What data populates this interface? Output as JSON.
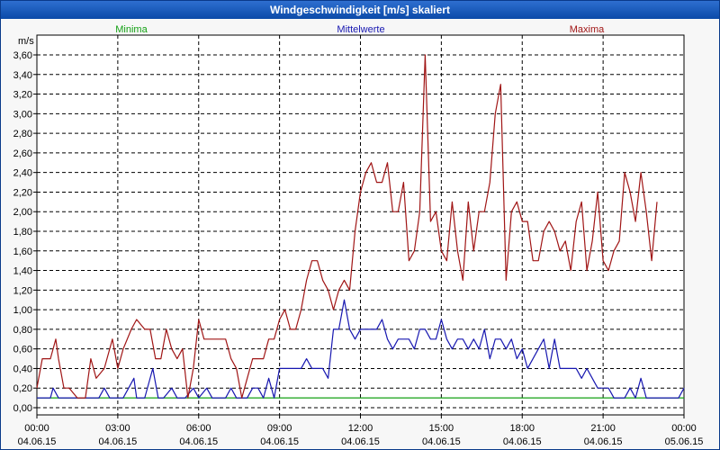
{
  "window": {
    "title": "Windgeschwindigkeit [m/s] skaliert"
  },
  "colors": {
    "minima": "#13a013",
    "mean": "#1717b0",
    "maxima": "#a01515",
    "grid": "#000000",
    "plot_bg": "#ffffff"
  },
  "chart_data": {
    "type": "line",
    "title": "Windgeschwindigkeit [m/s] skaliert",
    "ylabel": "m/s",
    "xlabel": "",
    "ylim": [
      0,
      3.7
    ],
    "xlim": [
      0,
      24
    ],
    "grid": true,
    "legend_placement": "top",
    "y_ticks": [
      0.0,
      0.2,
      0.4,
      0.6,
      0.8,
      1.0,
      1.2,
      1.4,
      1.6,
      1.8,
      2.0,
      2.2,
      2.4,
      2.6,
      2.8,
      3.0,
      3.2,
      3.4,
      3.6
    ],
    "y_tick_labels": [
      "0,00",
      "0,20",
      "0,40",
      "0,60",
      "0,80",
      "1,00",
      "1,20",
      "1,40",
      "1,60",
      "1,80",
      "2,00",
      "2,20",
      "2,40",
      "2,60",
      "2,80",
      "3,00",
      "3,20",
      "3,40",
      "3,60"
    ],
    "x_ticks": [
      {
        "hour": 0,
        "time": "00:00",
        "date": "04.06.15"
      },
      {
        "hour": 3,
        "time": "03:00",
        "date": "04.06.15"
      },
      {
        "hour": 6,
        "time": "06:00",
        "date": "04.06.15"
      },
      {
        "hour": 9,
        "time": "09:00",
        "date": "04.06.15"
      },
      {
        "hour": 12,
        "time": "12:00",
        "date": "04.06.15"
      },
      {
        "hour": 15,
        "time": "15:00",
        "date": "04.06.15"
      },
      {
        "hour": 18,
        "time": "18:00",
        "date": "04.06.15"
      },
      {
        "hour": 21,
        "time": "21:00",
        "date": "04.06.15"
      },
      {
        "hour": 24,
        "time": "00:00",
        "date": "05.06.15"
      }
    ],
    "series": [
      {
        "name": "Minima",
        "color_key": "minima",
        "points": [
          [
            0,
            0.1
          ],
          [
            24,
            0.1
          ]
        ]
      },
      {
        "name": "Mittelwerte",
        "color_key": "mean",
        "points": [
          [
            0,
            0.1
          ],
          [
            0.2,
            0.1
          ],
          [
            0.5,
            0.1
          ],
          [
            0.6,
            0.2
          ],
          [
            0.8,
            0.1
          ],
          [
            1.0,
            0.1
          ],
          [
            1.5,
            0.1
          ],
          [
            2.0,
            0.1
          ],
          [
            2.3,
            0.1
          ],
          [
            2.5,
            0.2
          ],
          [
            2.7,
            0.1
          ],
          [
            3.0,
            0.1
          ],
          [
            3.2,
            0.1
          ],
          [
            3.4,
            0.2
          ],
          [
            3.6,
            0.3
          ],
          [
            3.7,
            0.1
          ],
          [
            4.0,
            0.1
          ],
          [
            4.3,
            0.4
          ],
          [
            4.5,
            0.1
          ],
          [
            4.7,
            0.1
          ],
          [
            5.0,
            0.2
          ],
          [
            5.2,
            0.1
          ],
          [
            5.5,
            0.1
          ],
          [
            5.8,
            0.2
          ],
          [
            6.0,
            0.1
          ],
          [
            6.3,
            0.2
          ],
          [
            6.5,
            0.1
          ],
          [
            6.8,
            0.1
          ],
          [
            7.0,
            0.1
          ],
          [
            7.2,
            0.2
          ],
          [
            7.4,
            0.1
          ],
          [
            7.6,
            0.1
          ],
          [
            7.8,
            0.1
          ],
          [
            8.0,
            0.2
          ],
          [
            8.2,
            0.2
          ],
          [
            8.4,
            0.1
          ],
          [
            8.6,
            0.3
          ],
          [
            8.8,
            0.1
          ],
          [
            9.0,
            0.4
          ],
          [
            9.2,
            0.4
          ],
          [
            9.4,
            0.4
          ],
          [
            9.6,
            0.4
          ],
          [
            9.8,
            0.4
          ],
          [
            10.0,
            0.5
          ],
          [
            10.2,
            0.4
          ],
          [
            10.4,
            0.4
          ],
          [
            10.6,
            0.4
          ],
          [
            10.8,
            0.3
          ],
          [
            11.0,
            0.8
          ],
          [
            11.2,
            0.8
          ],
          [
            11.4,
            1.1
          ],
          [
            11.6,
            0.8
          ],
          [
            11.8,
            0.7
          ],
          [
            12.0,
            0.8
          ],
          [
            12.2,
            0.8
          ],
          [
            12.4,
            0.8
          ],
          [
            12.6,
            0.8
          ],
          [
            12.8,
            0.9
          ],
          [
            13.0,
            0.7
          ],
          [
            13.2,
            0.6
          ],
          [
            13.4,
            0.7
          ],
          [
            13.6,
            0.7
          ],
          [
            13.8,
            0.7
          ],
          [
            14.0,
            0.6
          ],
          [
            14.2,
            0.8
          ],
          [
            14.4,
            0.8
          ],
          [
            14.6,
            0.7
          ],
          [
            14.8,
            0.7
          ],
          [
            15.0,
            0.9
          ],
          [
            15.2,
            0.7
          ],
          [
            15.4,
            0.6
          ],
          [
            15.6,
            0.7
          ],
          [
            15.8,
            0.7
          ],
          [
            16.0,
            0.6
          ],
          [
            16.2,
            0.7
          ],
          [
            16.4,
            0.6
          ],
          [
            16.6,
            0.8
          ],
          [
            16.8,
            0.5
          ],
          [
            17.0,
            0.7
          ],
          [
            17.2,
            0.7
          ],
          [
            17.4,
            0.6
          ],
          [
            17.6,
            0.7
          ],
          [
            17.8,
            0.5
          ],
          [
            18.0,
            0.6
          ],
          [
            18.2,
            0.4
          ],
          [
            18.4,
            0.5
          ],
          [
            18.6,
            0.6
          ],
          [
            18.8,
            0.7
          ],
          [
            19.0,
            0.4
          ],
          [
            19.2,
            0.7
          ],
          [
            19.4,
            0.4
          ],
          [
            19.6,
            0.4
          ],
          [
            19.8,
            0.4
          ],
          [
            20.0,
            0.4
          ],
          [
            20.2,
            0.3
          ],
          [
            20.4,
            0.4
          ],
          [
            20.6,
            0.3
          ],
          [
            20.8,
            0.2
          ],
          [
            21.0,
            0.2
          ],
          [
            21.2,
            0.2
          ],
          [
            21.4,
            0.1
          ],
          [
            21.6,
            0.1
          ],
          [
            21.8,
            0.1
          ],
          [
            22.0,
            0.2
          ],
          [
            22.2,
            0.1
          ],
          [
            22.4,
            0.3
          ],
          [
            22.6,
            0.1
          ],
          [
            22.8,
            0.1
          ],
          [
            23.0,
            0.1
          ],
          [
            23.2,
            0.1
          ],
          [
            23.4,
            0.1
          ],
          [
            23.6,
            0.1
          ],
          [
            23.8,
            0.1
          ],
          [
            24.0,
            0.2
          ]
        ]
      },
      {
        "name": "Maxima",
        "color_key": "maxima",
        "points": [
          [
            0,
            0.2
          ],
          [
            0.2,
            0.5
          ],
          [
            0.5,
            0.5
          ],
          [
            0.7,
            0.7
          ],
          [
            0.8,
            0.5
          ],
          [
            1.0,
            0.2
          ],
          [
            1.2,
            0.2
          ],
          [
            1.5,
            0.1
          ],
          [
            1.8,
            0.1
          ],
          [
            2.0,
            0.5
          ],
          [
            2.2,
            0.3
          ],
          [
            2.5,
            0.4
          ],
          [
            2.8,
            0.7
          ],
          [
            3.0,
            0.4
          ],
          [
            3.2,
            0.6
          ],
          [
            3.5,
            0.8
          ],
          [
            3.7,
            0.9
          ],
          [
            4.0,
            0.8
          ],
          [
            4.2,
            0.8
          ],
          [
            4.4,
            0.5
          ],
          [
            4.6,
            0.5
          ],
          [
            4.8,
            0.8
          ],
          [
            5.0,
            0.6
          ],
          [
            5.2,
            0.5
          ],
          [
            5.4,
            0.6
          ],
          [
            5.6,
            0.1
          ],
          [
            5.8,
            0.4
          ],
          [
            6.0,
            0.9
          ],
          [
            6.2,
            0.7
          ],
          [
            6.4,
            0.7
          ],
          [
            6.6,
            0.7
          ],
          [
            6.8,
            0.7
          ],
          [
            7.0,
            0.7
          ],
          [
            7.2,
            0.5
          ],
          [
            7.4,
            0.4
          ],
          [
            7.6,
            0.1
          ],
          [
            7.8,
            0.3
          ],
          [
            8.0,
            0.5
          ],
          [
            8.2,
            0.5
          ],
          [
            8.4,
            0.5
          ],
          [
            8.6,
            0.7
          ],
          [
            8.8,
            0.7
          ],
          [
            9.0,
            0.9
          ],
          [
            9.2,
            1.0
          ],
          [
            9.4,
            0.8
          ],
          [
            9.6,
            0.8
          ],
          [
            9.8,
            1.0
          ],
          [
            10.0,
            1.3
          ],
          [
            10.2,
            1.5
          ],
          [
            10.4,
            1.5
          ],
          [
            10.6,
            1.3
          ],
          [
            10.8,
            1.2
          ],
          [
            11.0,
            1.0
          ],
          [
            11.2,
            1.2
          ],
          [
            11.4,
            1.3
          ],
          [
            11.6,
            1.2
          ],
          [
            11.8,
            1.8
          ],
          [
            12.0,
            2.2
          ],
          [
            12.2,
            2.4
          ],
          [
            12.4,
            2.5
          ],
          [
            12.6,
            2.3
          ],
          [
            12.8,
            2.3
          ],
          [
            13.0,
            2.5
          ],
          [
            13.2,
            2.0
          ],
          [
            13.4,
            2.0
          ],
          [
            13.6,
            2.3
          ],
          [
            13.8,
            1.5
          ],
          [
            14.0,
            1.6
          ],
          [
            14.2,
            2.0
          ],
          [
            14.4,
            3.6
          ],
          [
            14.6,
            1.9
          ],
          [
            14.8,
            2.0
          ],
          [
            15.0,
            1.6
          ],
          [
            15.2,
            1.5
          ],
          [
            15.4,
            2.1
          ],
          [
            15.6,
            1.6
          ],
          [
            15.8,
            1.3
          ],
          [
            16.0,
            2.1
          ],
          [
            16.2,
            1.6
          ],
          [
            16.4,
            2.0
          ],
          [
            16.6,
            2.0
          ],
          [
            16.8,
            2.3
          ],
          [
            17.0,
            3.0
          ],
          [
            17.2,
            3.3
          ],
          [
            17.4,
            1.3
          ],
          [
            17.6,
            2.0
          ],
          [
            17.8,
            2.1
          ],
          [
            18.0,
            1.9
          ],
          [
            18.2,
            1.9
          ],
          [
            18.4,
            1.5
          ],
          [
            18.6,
            1.5
          ],
          [
            18.8,
            1.8
          ],
          [
            19.0,
            1.9
          ],
          [
            19.2,
            1.8
          ],
          [
            19.4,
            1.6
          ],
          [
            19.6,
            1.7
          ],
          [
            19.8,
            1.4
          ],
          [
            20.0,
            1.9
          ],
          [
            20.2,
            2.1
          ],
          [
            20.4,
            1.4
          ],
          [
            20.6,
            1.7
          ],
          [
            20.8,
            2.2
          ],
          [
            21.0,
            1.5
          ],
          [
            21.2,
            1.4
          ],
          [
            21.4,
            1.6
          ],
          [
            21.6,
            1.7
          ],
          [
            21.8,
            2.4
          ],
          [
            22.0,
            2.2
          ],
          [
            22.2,
            1.9
          ],
          [
            22.4,
            2.4
          ],
          [
            22.6,
            2.0
          ],
          [
            22.8,
            1.5
          ],
          [
            23.0,
            2.1
          ]
        ]
      }
    ]
  }
}
